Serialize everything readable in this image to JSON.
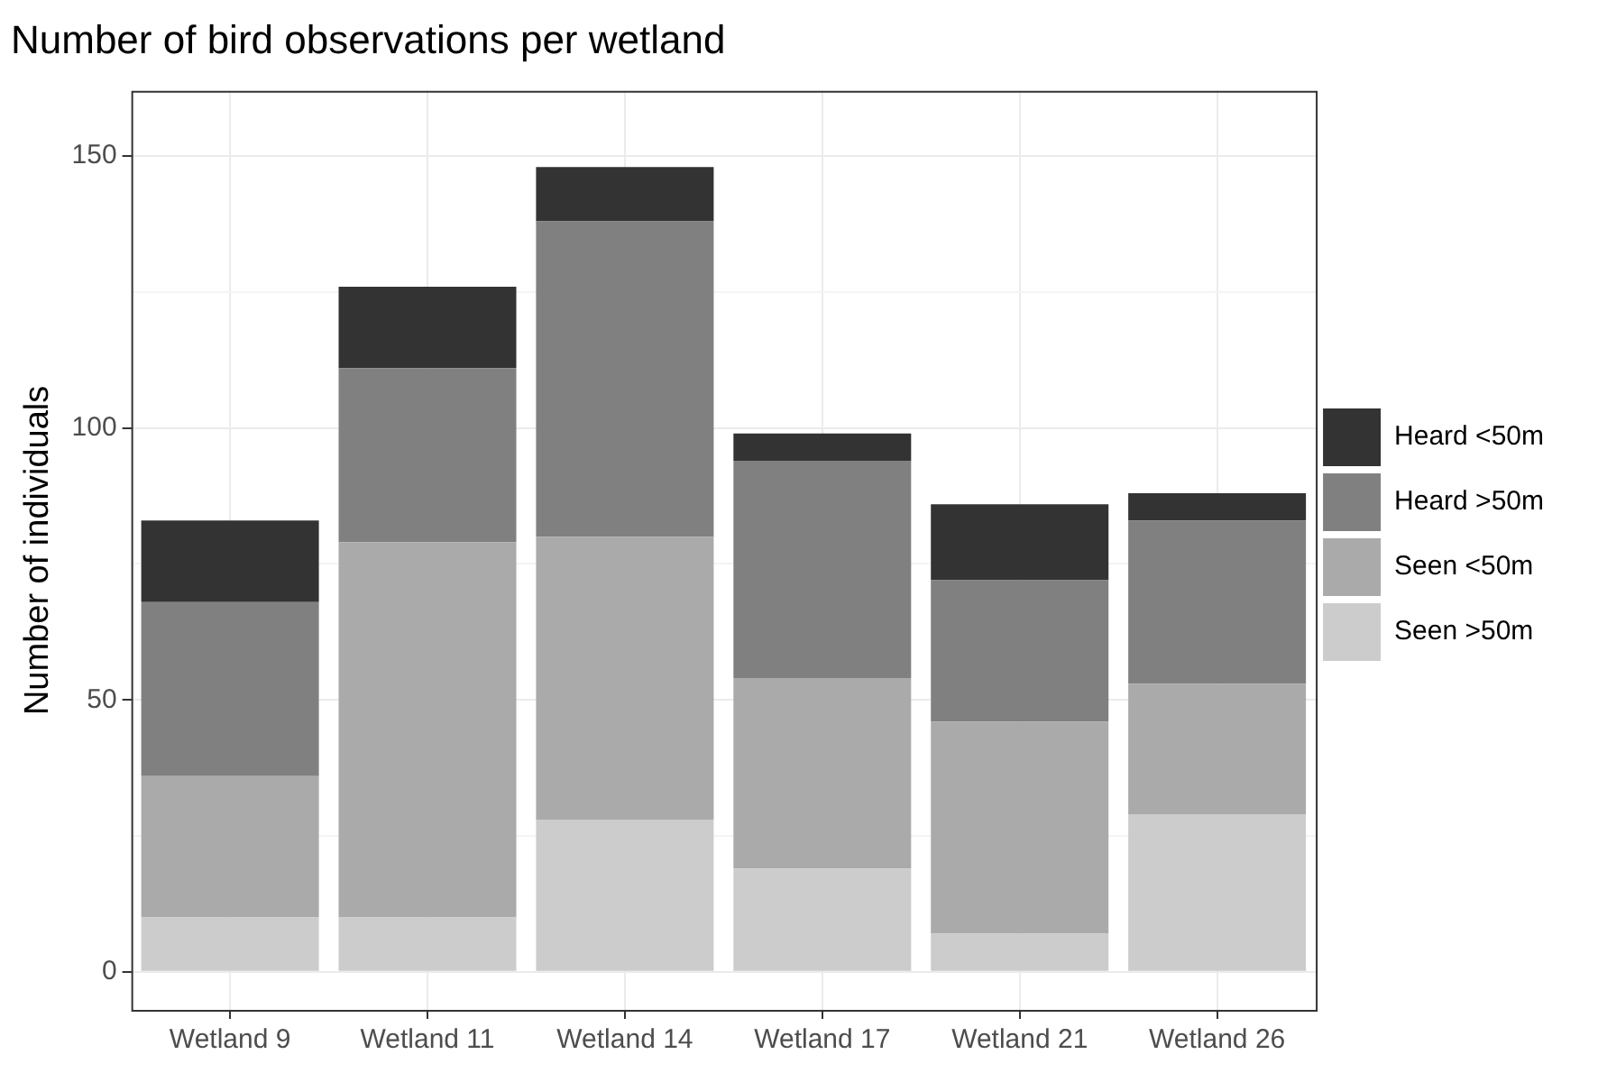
{
  "chart_data": {
    "type": "bar",
    "title": "Number of bird observations per wetland",
    "ylabel": "Number of individuals",
    "categories": [
      "Wetland 9",
      "Wetland 11",
      "Wetland 14",
      "Wetland 17",
      "Wetland 21",
      "Wetland 26"
    ],
    "stacked": true,
    "series": [
      {
        "name": "Seen >50m",
        "color": "#cccccc",
        "values": [
          10,
          10,
          28,
          19,
          7,
          29
        ]
      },
      {
        "name": "Seen <50m",
        "color": "#aaaaaa",
        "values": [
          26,
          69,
          52,
          35,
          39,
          24
        ]
      },
      {
        "name": "Heard >50m",
        "color": "#808080",
        "values": [
          32,
          32,
          58,
          40,
          26,
          30
        ]
      },
      {
        "name": "Heard <50m",
        "color": "#333333",
        "values": [
          15,
          15,
          10,
          5,
          14,
          5
        ]
      }
    ],
    "ylim": [
      -7,
      162
    ],
    "yticks": [
      0,
      {
        "value": 25,
        "label": null
      },
      50,
      {
        "value": 75,
        "label": null
      },
      100,
      {
        "value": 125,
        "label": null
      },
      150
    ],
    "grid": true,
    "legend": "right"
  }
}
